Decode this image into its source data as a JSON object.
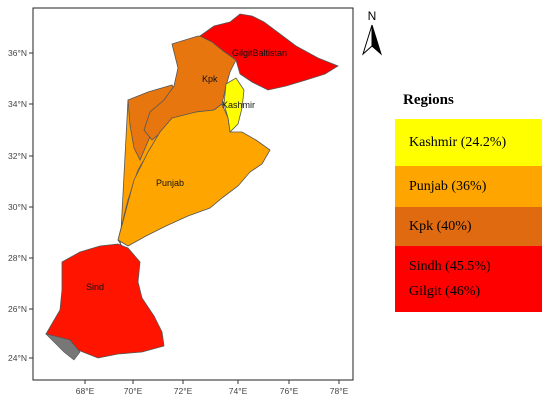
{
  "map": {
    "x_ticks": [
      "68°E",
      "70°E",
      "72°E",
      "74°E",
      "76°E",
      "78°E"
    ],
    "y_ticks": [
      "24°N",
      "26°N",
      "28°N",
      "30°N",
      "32°N",
      "34°N",
      "36°N"
    ],
    "north_label": "N",
    "regions": [
      {
        "key": "gilgit",
        "label": "GilgitBaltistan",
        "color": "#FF0000"
      },
      {
        "key": "kpk",
        "label": "Kpk",
        "color": "#E8760F"
      },
      {
        "key": "kashmir",
        "label": "Kashmir",
        "color": "#FFFF00"
      },
      {
        "key": "punjab",
        "label": "Punjab",
        "color": "#FFA500"
      },
      {
        "key": "sind",
        "label": "Sind",
        "color": "#FF1400"
      }
    ],
    "balochistan_color": "#FFA000",
    "border_color": "#555555"
  },
  "legend": {
    "title": "Regions",
    "items": [
      {
        "key": "kashmir",
        "label": "Kashmir (24.2%)",
        "color": "#FFFF00"
      },
      {
        "key": "punjab",
        "label": "Punjab (36%)",
        "color": "#FFA500"
      },
      {
        "key": "kpk",
        "label": "Kpk (40%)",
        "color": "#E06A10"
      },
      {
        "key": "sindh_gilgit",
        "labels": [
          "Sindh (45.5%)",
          "Gilgit (46%)"
        ],
        "color": "#FF0000"
      }
    ]
  }
}
